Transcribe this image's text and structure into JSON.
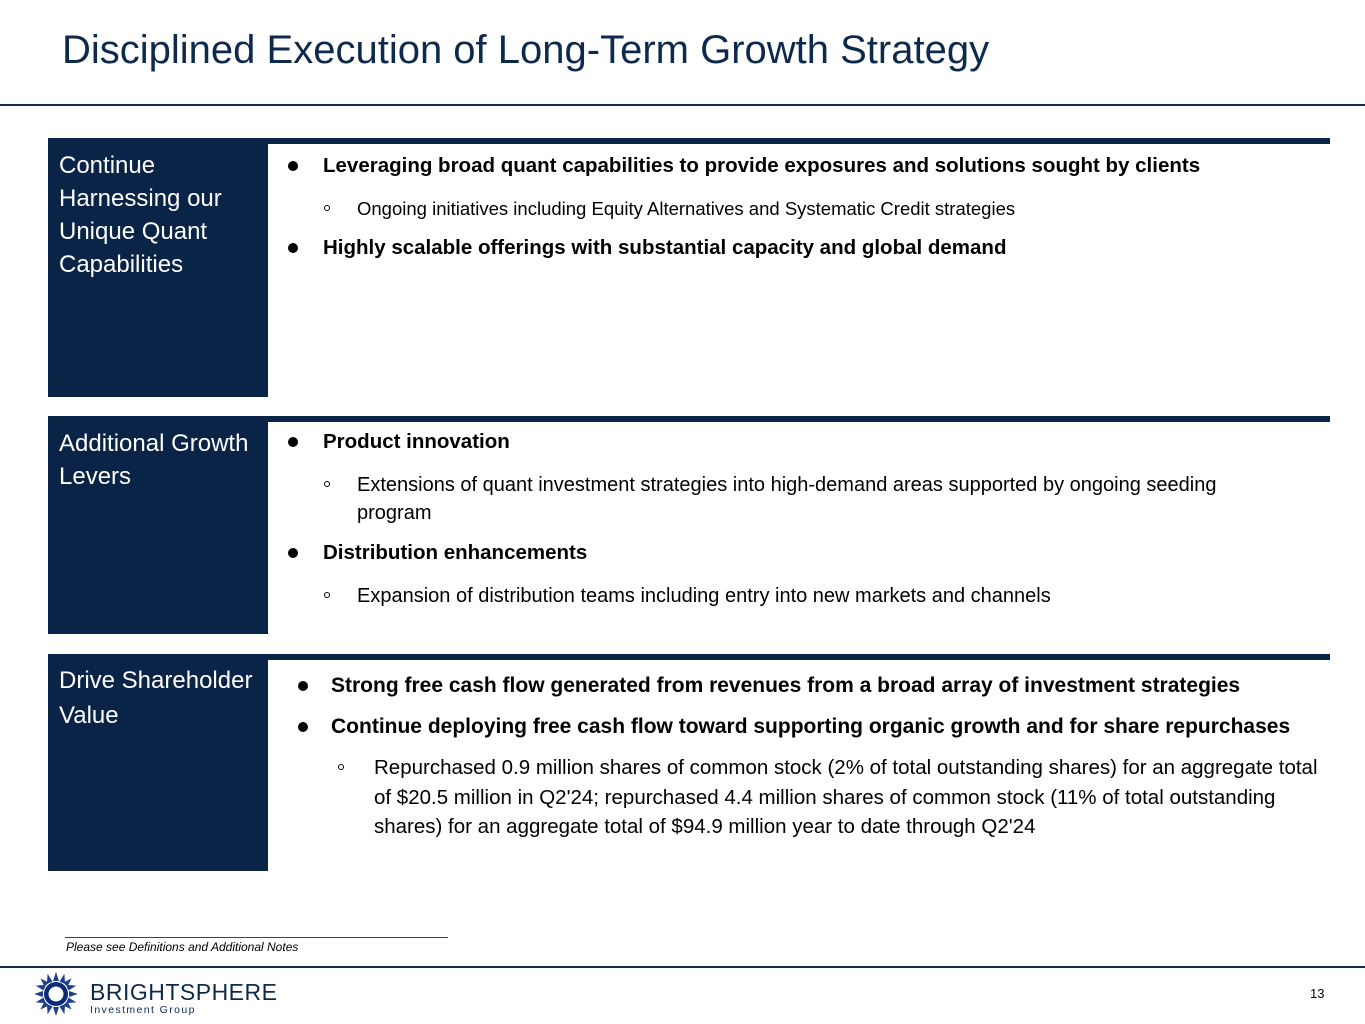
{
  "slide": {
    "title": "Disciplined Execution of Long-Term Growth Strategy",
    "page_number": "13"
  },
  "sections": [
    {
      "label": "Continue Harnessing our Unique Quant Capabilities",
      "bullets": [
        {
          "level": 1,
          "text": "Leveraging broad quant capabilities to provide exposures and solutions sought by clients"
        },
        {
          "level": 2,
          "text": "Ongoing initiatives including Equity Alternatives and Systematic Credit strategies"
        },
        {
          "level": 1,
          "text": "Highly scalable offerings with substantial capacity and global demand"
        }
      ]
    },
    {
      "label": "Additional Growth Levers",
      "bullets": [
        {
          "level": 1,
          "text": "Product innovation"
        },
        {
          "level": 2,
          "text": "Extensions of quant investment strategies into high-demand areas supported by ongoing seeding program"
        },
        {
          "level": 1,
          "text": "Distribution enhancements"
        },
        {
          "level": 2,
          "text": "Expansion of distribution teams including entry into new markets and channels"
        }
      ]
    },
    {
      "label": "Drive Shareholder Value",
      "bullets": [
        {
          "level": 1,
          "text": "Strong free cash flow generated from revenues from a broad array of investment strategies"
        },
        {
          "level": 1,
          "text": "Continue deploying free cash flow toward supporting organic growth and for share repurchases"
        },
        {
          "level": 2,
          "text": "Repurchased 0.9 million shares of common stock (2% of total outstanding shares) for an aggregate total of $20.5 million in Q2'24; repurchased 4.4 million shares of common stock (11% of total outstanding shares) for an aggregate total of $94.9 million year to date through Q2'24"
        }
      ]
    }
  ],
  "footnote": "Please see Definitions and Additional Notes",
  "logo": {
    "name": "BRIGHTSPHERE",
    "subtitle": "Investment Group"
  },
  "colors": {
    "navy": "#0a2447",
    "title": "#0d2a4d"
  }
}
